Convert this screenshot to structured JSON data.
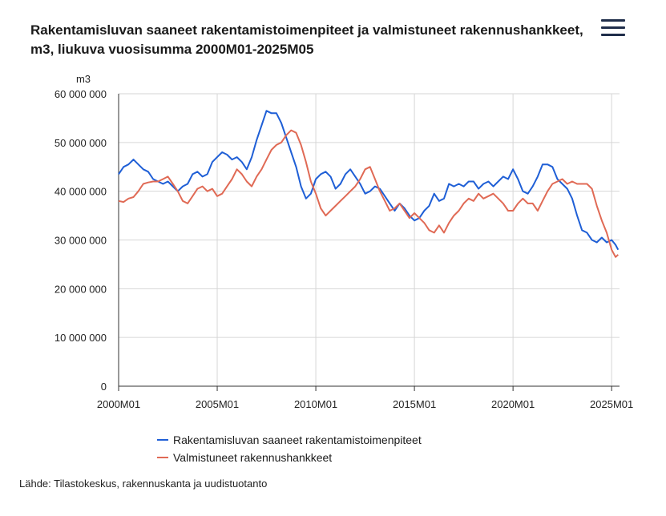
{
  "header": {
    "title": "Rakentamisluvan saaneet rakentamistoimenpiteet ja valmistuneet rakennushankkeet, m3, liukuva vuosisumma 2000M01-2025M05",
    "menu_icon": "hamburger-menu-icon"
  },
  "chart_data": {
    "type": "line",
    "title": "Rakentamisluvan saaneet rakentamistoimenpiteet ja valmistuneet rakennushankkeet, m3, liukuva vuosisumma 2000M01-2025M05",
    "ylabel": "m3",
    "ylim": [
      0,
      60000000
    ],
    "yticks": [
      {
        "value": 0,
        "label": "0"
      },
      {
        "value": 10000000,
        "label": "10 000 000"
      },
      {
        "value": 20000000,
        "label": "20 000 000"
      },
      {
        "value": 30000000,
        "label": "30 000 000"
      },
      {
        "value": 40000000,
        "label": "40 000 000"
      },
      {
        "value": 50000000,
        "label": "50 000 000"
      },
      {
        "value": 60000000,
        "label": "60 000 000"
      }
    ],
    "xlim": [
      2000.0,
      2025.4
    ],
    "xticks": [
      {
        "value": 2000,
        "label": "2000M01"
      },
      {
        "value": 2005,
        "label": "2005M01"
      },
      {
        "value": 2010,
        "label": "2010M01"
      },
      {
        "value": 2015,
        "label": "2015M01"
      },
      {
        "value": 2020,
        "label": "2020M01"
      },
      {
        "value": 2025,
        "label": "2025M01"
      }
    ],
    "grid": true,
    "legend_position": "bottom",
    "series": [
      {
        "name": "Rakentamisluvan saaneet rakentamistoimenpiteet",
        "color": "#1f5fd6",
        "points": [
          [
            2000.0,
            43.5
          ],
          [
            2000.25,
            45.0
          ],
          [
            2000.5,
            45.5
          ],
          [
            2000.75,
            46.5
          ],
          [
            2001.0,
            45.5
          ],
          [
            2001.25,
            44.5
          ],
          [
            2001.5,
            44.0
          ],
          [
            2001.75,
            42.5
          ],
          [
            2002.0,
            42.0
          ],
          [
            2002.25,
            41.5
          ],
          [
            2002.5,
            42.0
          ],
          [
            2002.75,
            41.0
          ],
          [
            2003.0,
            40.0
          ],
          [
            2003.25,
            41.0
          ],
          [
            2003.5,
            41.5
          ],
          [
            2003.75,
            43.5
          ],
          [
            2004.0,
            44.0
          ],
          [
            2004.25,
            43.0
          ],
          [
            2004.5,
            43.5
          ],
          [
            2004.75,
            46.0
          ],
          [
            2005.0,
            47.0
          ],
          [
            2005.25,
            48.0
          ],
          [
            2005.5,
            47.5
          ],
          [
            2005.75,
            46.5
          ],
          [
            2006.0,
            47.0
          ],
          [
            2006.25,
            46.0
          ],
          [
            2006.5,
            44.5
          ],
          [
            2006.75,
            47.0
          ],
          [
            2007.0,
            50.5
          ],
          [
            2007.25,
            53.5
          ],
          [
            2007.5,
            56.5
          ],
          [
            2007.75,
            56.0
          ],
          [
            2008.0,
            56.0
          ],
          [
            2008.25,
            54.0
          ],
          [
            2008.5,
            51.0
          ],
          [
            2008.75,
            48.0
          ],
          [
            2009.0,
            45.0
          ],
          [
            2009.25,
            41.0
          ],
          [
            2009.5,
            38.5
          ],
          [
            2009.75,
            39.5
          ],
          [
            2010.0,
            42.5
          ],
          [
            2010.25,
            43.5
          ],
          [
            2010.5,
            44.0
          ],
          [
            2010.75,
            43.0
          ],
          [
            2011.0,
            40.5
          ],
          [
            2011.25,
            41.5
          ],
          [
            2011.5,
            43.5
          ],
          [
            2011.75,
            44.5
          ],
          [
            2012.0,
            43.0
          ],
          [
            2012.25,
            41.5
          ],
          [
            2012.5,
            39.5
          ],
          [
            2012.75,
            40.0
          ],
          [
            2013.0,
            41.0
          ],
          [
            2013.25,
            40.5
          ],
          [
            2013.5,
            39.0
          ],
          [
            2013.75,
            37.5
          ],
          [
            2014.0,
            36.0
          ],
          [
            2014.25,
            37.5
          ],
          [
            2014.5,
            36.5
          ],
          [
            2014.75,
            35.0
          ],
          [
            2015.0,
            34.0
          ],
          [
            2015.25,
            34.5
          ],
          [
            2015.5,
            36.0
          ],
          [
            2015.75,
            37.0
          ],
          [
            2016.0,
            39.5
          ],
          [
            2016.25,
            38.0
          ],
          [
            2016.5,
            38.5
          ],
          [
            2016.75,
            41.5
          ],
          [
            2017.0,
            41.0
          ],
          [
            2017.25,
            41.5
          ],
          [
            2017.5,
            41.0
          ],
          [
            2017.75,
            42.0
          ],
          [
            2018.0,
            42.0
          ],
          [
            2018.25,
            40.5
          ],
          [
            2018.5,
            41.5
          ],
          [
            2018.75,
            42.0
          ],
          [
            2019.0,
            41.0
          ],
          [
            2019.25,
            42.0
          ],
          [
            2019.5,
            43.0
          ],
          [
            2019.75,
            42.5
          ],
          [
            2020.0,
            44.5
          ],
          [
            2020.25,
            42.5
          ],
          [
            2020.5,
            40.0
          ],
          [
            2020.75,
            39.5
          ],
          [
            2021.0,
            41.0
          ],
          [
            2021.25,
            43.0
          ],
          [
            2021.5,
            45.5
          ],
          [
            2021.75,
            45.5
          ],
          [
            2022.0,
            45.0
          ],
          [
            2022.25,
            42.5
          ],
          [
            2022.5,
            41.5
          ],
          [
            2022.75,
            40.5
          ],
          [
            2023.0,
            38.5
          ],
          [
            2023.25,
            35.0
          ],
          [
            2023.5,
            32.0
          ],
          [
            2023.75,
            31.5
          ],
          [
            2024.0,
            30.0
          ],
          [
            2024.25,
            29.5
          ],
          [
            2024.5,
            30.5
          ],
          [
            2024.75,
            29.5
          ],
          [
            2025.0,
            30.0
          ],
          [
            2025.2,
            29.0
          ],
          [
            2025.33,
            28.0
          ]
        ]
      },
      {
        "name": "Valmistuneet rakennushankkeet",
        "color": "#e06a55",
        "points": [
          [
            2000.0,
            38.0
          ],
          [
            2000.25,
            37.8
          ],
          [
            2000.5,
            38.5
          ],
          [
            2000.75,
            38.8
          ],
          [
            2001.0,
            40.0
          ],
          [
            2001.25,
            41.5
          ],
          [
            2001.5,
            41.8
          ],
          [
            2001.75,
            42.0
          ],
          [
            2002.0,
            42.0
          ],
          [
            2002.25,
            42.5
          ],
          [
            2002.5,
            43.0
          ],
          [
            2002.75,
            41.5
          ],
          [
            2003.0,
            40.0
          ],
          [
            2003.25,
            38.0
          ],
          [
            2003.5,
            37.5
          ],
          [
            2003.75,
            39.0
          ],
          [
            2004.0,
            40.5
          ],
          [
            2004.25,
            41.0
          ],
          [
            2004.5,
            40.0
          ],
          [
            2004.75,
            40.5
          ],
          [
            2005.0,
            39.0
          ],
          [
            2005.25,
            39.5
          ],
          [
            2005.5,
            41.0
          ],
          [
            2005.75,
            42.5
          ],
          [
            2006.0,
            44.5
          ],
          [
            2006.25,
            43.5
          ],
          [
            2006.5,
            42.0
          ],
          [
            2006.75,
            41.0
          ],
          [
            2007.0,
            43.0
          ],
          [
            2007.25,
            44.5
          ],
          [
            2007.5,
            46.5
          ],
          [
            2007.75,
            48.5
          ],
          [
            2008.0,
            49.5
          ],
          [
            2008.25,
            50.0
          ],
          [
            2008.5,
            51.5
          ],
          [
            2008.75,
            52.5
          ],
          [
            2009.0,
            52.0
          ],
          [
            2009.25,
            49.5
          ],
          [
            2009.5,
            46.0
          ],
          [
            2009.75,
            42.0
          ],
          [
            2010.0,
            39.5
          ],
          [
            2010.25,
            36.5
          ],
          [
            2010.5,
            35.0
          ],
          [
            2010.75,
            36.0
          ],
          [
            2011.0,
            37.0
          ],
          [
            2011.25,
            38.0
          ],
          [
            2011.5,
            39.0
          ],
          [
            2011.75,
            40.0
          ],
          [
            2012.0,
            41.0
          ],
          [
            2012.25,
            42.5
          ],
          [
            2012.5,
            44.5
          ],
          [
            2012.75,
            45.0
          ],
          [
            2013.0,
            42.5
          ],
          [
            2013.25,
            40.0
          ],
          [
            2013.5,
            38.0
          ],
          [
            2013.75,
            36.0
          ],
          [
            2014.0,
            36.5
          ],
          [
            2014.25,
            37.5
          ],
          [
            2014.5,
            36.0
          ],
          [
            2014.75,
            34.5
          ],
          [
            2015.0,
            35.5
          ],
          [
            2015.25,
            34.5
          ],
          [
            2015.5,
            33.5
          ],
          [
            2015.75,
            32.0
          ],
          [
            2016.0,
            31.5
          ],
          [
            2016.25,
            33.0
          ],
          [
            2016.5,
            31.5
          ],
          [
            2016.75,
            33.5
          ],
          [
            2017.0,
            35.0
          ],
          [
            2017.25,
            36.0
          ],
          [
            2017.5,
            37.5
          ],
          [
            2017.75,
            38.5
          ],
          [
            2018.0,
            38.0
          ],
          [
            2018.25,
            39.5
          ],
          [
            2018.5,
            38.5
          ],
          [
            2018.75,
            39.0
          ],
          [
            2019.0,
            39.5
          ],
          [
            2019.25,
            38.5
          ],
          [
            2019.5,
            37.5
          ],
          [
            2019.75,
            36.0
          ],
          [
            2020.0,
            36.0
          ],
          [
            2020.25,
            37.5
          ],
          [
            2020.5,
            38.5
          ],
          [
            2020.75,
            37.5
          ],
          [
            2021.0,
            37.5
          ],
          [
            2021.25,
            36.0
          ],
          [
            2021.5,
            38.0
          ],
          [
            2021.75,
            40.0
          ],
          [
            2022.0,
            41.5
          ],
          [
            2022.25,
            42.0
          ],
          [
            2022.5,
            42.5
          ],
          [
            2022.75,
            41.5
          ],
          [
            2023.0,
            42.0
          ],
          [
            2023.25,
            41.5
          ],
          [
            2023.5,
            41.5
          ],
          [
            2023.75,
            41.5
          ],
          [
            2024.0,
            40.5
          ],
          [
            2024.25,
            37.0
          ],
          [
            2024.5,
            34.0
          ],
          [
            2024.75,
            31.5
          ],
          [
            2025.0,
            28.0
          ],
          [
            2025.2,
            26.5
          ],
          [
            2025.33,
            27.0
          ]
        ]
      }
    ]
  },
  "legend": {
    "items": [
      {
        "label": "Rakentamisluvan saaneet rakentamistoimenpiteet",
        "color": "#1f5fd6"
      },
      {
        "label": "Valmistuneet rakennushankkeet",
        "color": "#e06a55"
      }
    ]
  },
  "footer": {
    "source": "Lähde: Tilastokeskus, rakennuskanta ja uudistuotanto"
  }
}
